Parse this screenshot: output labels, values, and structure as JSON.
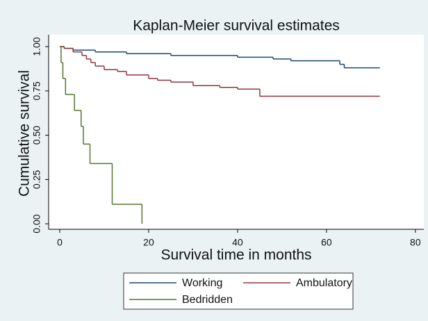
{
  "chart_data": {
    "type": "step",
    "title": "Kaplan-Meier survival estimates",
    "x_label": "Survival time in months",
    "y_label": "Cumulative survival",
    "xlim": [
      -2.5,
      81.9
    ],
    "xticks": [
      0,
      20,
      40,
      60,
      80
    ],
    "ylim": [
      -0.031,
      1.067
    ],
    "yticks": [
      {
        "value": 0,
        "label": "0.00"
      },
      {
        "value": 0.25,
        "label": "0.25"
      },
      {
        "value": 0.5,
        "label": "0.50"
      },
      {
        "value": 0.75,
        "label": "0.75"
      },
      {
        "value": 1,
        "label": "1.00"
      }
    ],
    "grid": false,
    "series": [
      {
        "name": "Working",
        "color": "#1a476f",
        "x": [
          0,
          1,
          3,
          8,
          15,
          25,
          40,
          48,
          52,
          63,
          64,
          72
        ],
        "values": [
          1,
          0.99,
          0.98,
          0.97,
          0.96,
          0.95,
          0.94,
          0.93,
          0.92,
          0.9,
          0.88,
          0.88
        ]
      },
      {
        "name": "Ambulatory",
        "color": "#90353b",
        "x": [
          0,
          1,
          3,
          5,
          6,
          7,
          8,
          10,
          13,
          15,
          20,
          22,
          25,
          30,
          36,
          40,
          45,
          72
        ],
        "values": [
          1,
          0.99,
          0.97,
          0.95,
          0.93,
          0.91,
          0.89,
          0.87,
          0.86,
          0.84,
          0.82,
          0.81,
          0.8,
          0.78,
          0.77,
          0.76,
          0.72,
          0.72
        ]
      },
      {
        "name": "Bedridden",
        "color": "#55752f",
        "x": [
          0,
          0.3,
          0.7,
          1.3,
          3.3,
          4.8,
          5.3,
          6.8,
          11.8,
          18.5
        ],
        "values": [
          1,
          0.91,
          0.82,
          0.73,
          0.64,
          0.55,
          0.45,
          0.34,
          0.11,
          0
        ]
      }
    ]
  }
}
